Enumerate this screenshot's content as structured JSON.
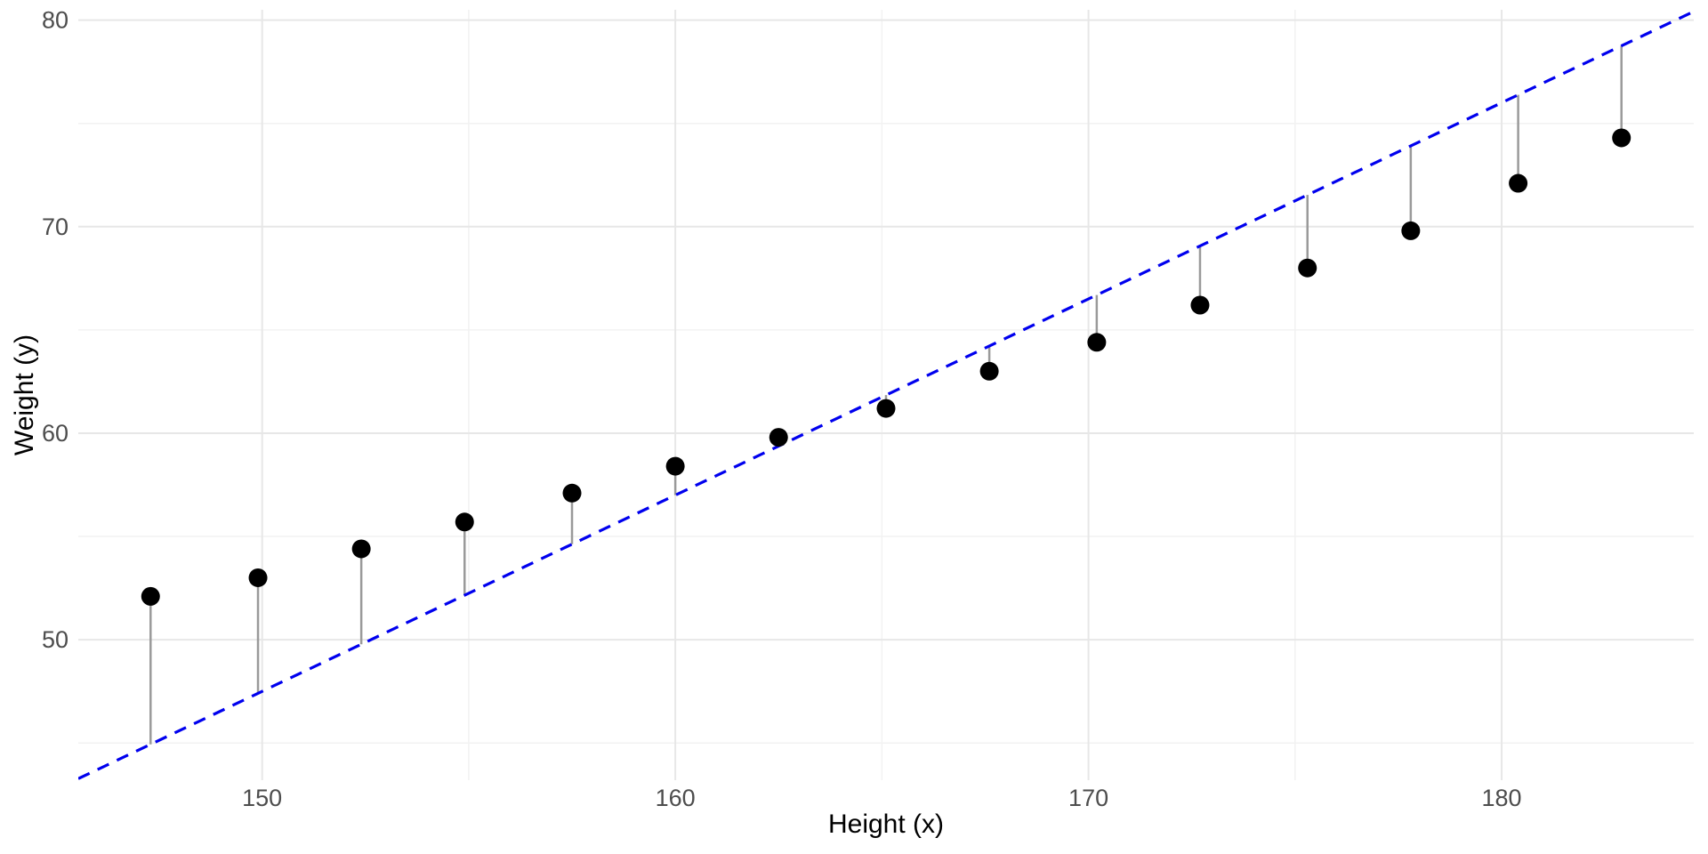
{
  "chart_data": {
    "type": "scatter",
    "title": "",
    "xlabel": "Height (x)",
    "ylabel": "Weight (y)",
    "xlim": [
      145.55,
      184.65
    ],
    "ylim": [
      43.2,
      80.5
    ],
    "x_major_ticks": [
      150,
      160,
      170,
      180
    ],
    "x_minor_gridlines": [
      155,
      165,
      175
    ],
    "y_major_ticks": [
      50,
      60,
      70,
      80
    ],
    "y_minor_gridlines": [
      45,
      55,
      65,
      75
    ],
    "grid": true,
    "legend_position": "none",
    "points": [
      {
        "x": 147.3,
        "y": 52.1
      },
      {
        "x": 149.9,
        "y": 53.0
      },
      {
        "x": 152.4,
        "y": 54.4
      },
      {
        "x": 154.9,
        "y": 55.7
      },
      {
        "x": 157.5,
        "y": 57.1
      },
      {
        "x": 160.0,
        "y": 58.4
      },
      {
        "x": 162.5,
        "y": 59.8
      },
      {
        "x": 165.1,
        "y": 61.2
      },
      {
        "x": 167.6,
        "y": 63.0
      },
      {
        "x": 170.2,
        "y": 64.4
      },
      {
        "x": 172.7,
        "y": 66.2
      },
      {
        "x": 175.3,
        "y": 68.0
      },
      {
        "x": 177.8,
        "y": 69.8
      },
      {
        "x": 180.4,
        "y": 72.1
      },
      {
        "x": 182.9,
        "y": 74.3
      }
    ],
    "reference_line": {
      "type": "abline",
      "slope": 0.95,
      "intercept": -95,
      "style": "dashed"
    },
    "residual_segments": true,
    "style": {
      "background": "#ffffff",
      "point_color": "#000000",
      "segment_color": "#9a9a9a",
      "line_color": "#0000ee",
      "grid_major_color": "#e7e7e7",
      "grid_minor_color": "#f2f2f2",
      "tick_label_color": "#4d4d4d",
      "axis_title_color": "#000000"
    }
  }
}
